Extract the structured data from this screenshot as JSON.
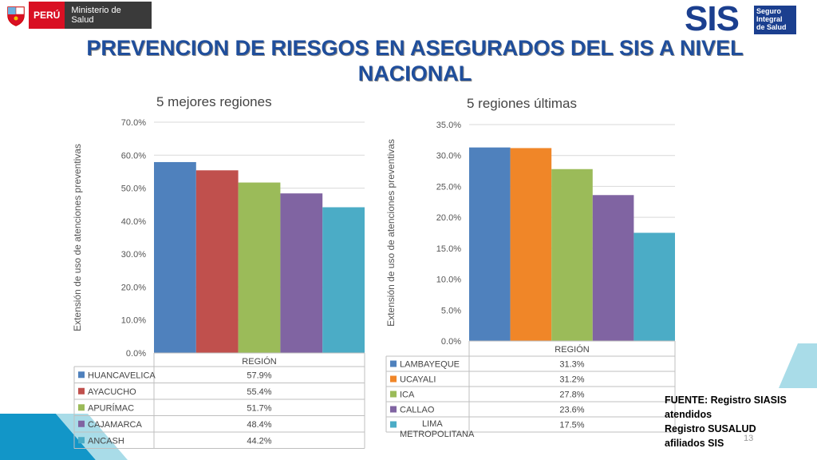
{
  "header": {
    "country_label": "PERÚ",
    "ministry_label": "Ministerio de Salud",
    "sis_logo_text": "SIS",
    "sis_logo_sub": [
      "Seguro",
      "Integral",
      "de Salud"
    ]
  },
  "title_lines": [
    "PREVENCION DE RIESGOS EN ASEGURADOS DEL SIS A NIVEL",
    "NACIONAL"
  ],
  "source_note": [
    "FUENTE: Registro SIASIS",
    "atendidos",
    "Registro SUSALUD",
    "afiliados SIS"
  ],
  "page_number": "13",
  "colors": {
    "title": "#1f4e9c",
    "peru_red": "#d91023",
    "sis_blue": "#1b3f8f",
    "teal_accent": "#a9dce8",
    "blue_accent": "#1296c8"
  },
  "chart_data": [
    {
      "type": "bar",
      "title": "5 mejores regiones",
      "xlabel": "REGIÓN",
      "ylabel": "Extensión de uso de atenciones preventivas",
      "ylim": [
        0,
        70
      ],
      "yticks": [
        0,
        10,
        20,
        30,
        40,
        50,
        60,
        70
      ],
      "ytick_labels": [
        "0.0%",
        "10.0%",
        "20.0%",
        "30.0%",
        "40.0%",
        "50.0%",
        "60.0%",
        "70.0%"
      ],
      "grid": true,
      "data_table": true,
      "categories": [
        "HUANCAVELICA",
        "AYACUCHO",
        "APURÍMAC",
        "CAJAMARCA",
        "ANCASH"
      ],
      "values": [
        57.9,
        55.4,
        51.7,
        48.4,
        44.2
      ],
      "value_labels": [
        "57.9%",
        "55.4%",
        "51.7%",
        "48.4%",
        "44.2%"
      ],
      "colors": [
        "#4f81bd",
        "#c0504d",
        "#9bbb59",
        "#8064a2",
        "#4bacc6"
      ]
    },
    {
      "type": "bar",
      "title": "5 regiones últimas",
      "xlabel": "REGIÓN",
      "ylabel": "Extensión de uso de atenciones preventivas",
      "ylim": [
        0,
        35
      ],
      "yticks": [
        0,
        5,
        10,
        15,
        20,
        25,
        30,
        35
      ],
      "ytick_labels": [
        "0.0%",
        "5.0%",
        "10.0%",
        "15.0%",
        "20.0%",
        "25.0%",
        "30.0%",
        "35.0%"
      ],
      "grid": true,
      "data_table": true,
      "categories": [
        "LAMBAYEQUE",
        "UCAYALI",
        "ICA",
        "CALLAO",
        "LIMA METROPOLITANA"
      ],
      "category_lines": [
        [
          "LAMBAYEQUE"
        ],
        [
          "UCAYALI"
        ],
        [
          "ICA"
        ],
        [
          "CALLAO"
        ],
        [
          "LIMA",
          "METROPOLITANA"
        ]
      ],
      "values": [
        31.3,
        31.2,
        27.8,
        23.6,
        17.5
      ],
      "value_labels": [
        "31.3%",
        "31.2%",
        "27.8%",
        "23.6%",
        "17.5%"
      ],
      "colors": [
        "#4f81bd",
        "#f08628",
        "#9bbb59",
        "#8064a2",
        "#4bacc6"
      ]
    }
  ]
}
